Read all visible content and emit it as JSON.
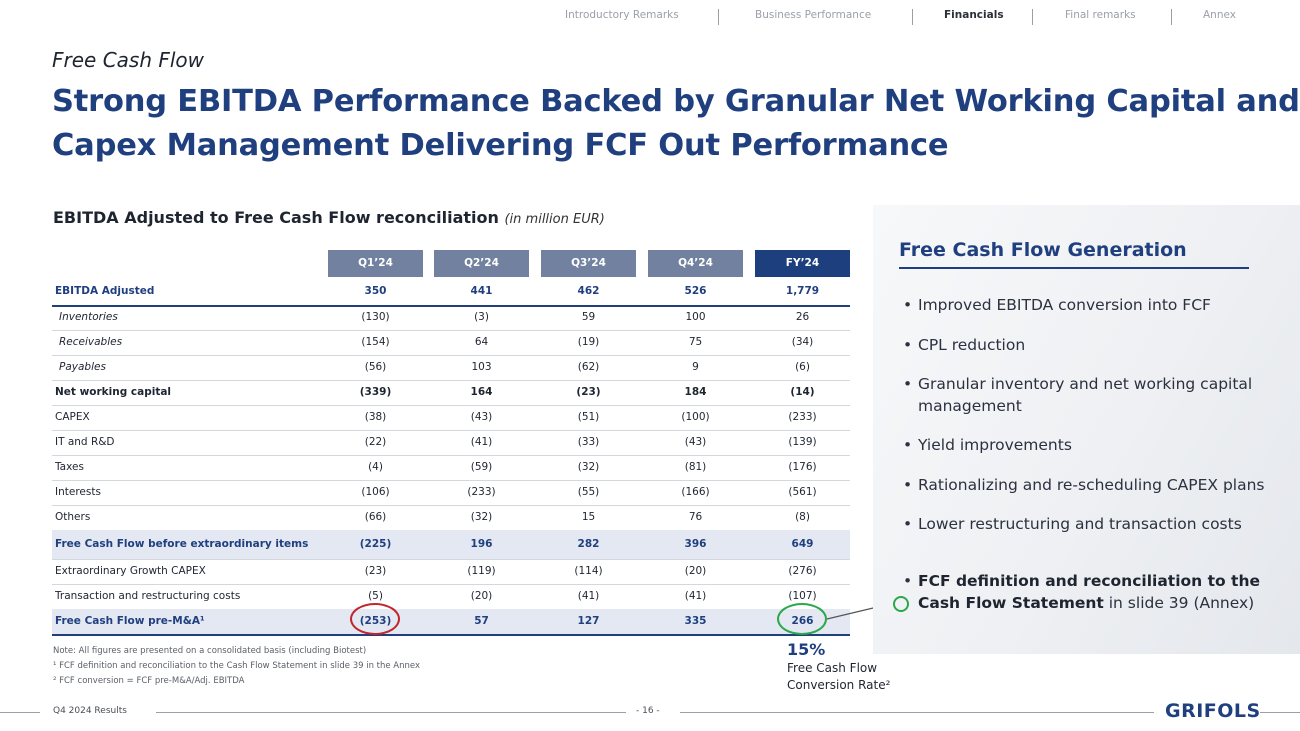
{
  "nav": {
    "items": [
      "Introductory Remarks",
      "Business Performance",
      "Financials",
      "Final remarks",
      "Annex"
    ],
    "active": "Financials"
  },
  "header": {
    "subtitle": "Free Cash Flow",
    "title_line1": "Strong EBITDA Performance Backed by Granular Net Working Capital and",
    "title_line2": "Capex Management Delivering FCF Out Performance"
  },
  "section": {
    "title": "EBITDA Adjusted to Free Cash Flow reconciliation",
    "unit": "(in million EUR)"
  },
  "table": {
    "columns": [
      "Q1’24",
      "Q2’24",
      "Q3’24",
      "Q4’24",
      "FY’24"
    ],
    "rows": [
      {
        "label": "EBITDA Adjusted",
        "values": [
          "350",
          "441",
          "462",
          "526",
          "1,779"
        ],
        "style": "blue"
      },
      {
        "label": "Inventories",
        "values": [
          "(130)",
          "(3)",
          "59",
          "100",
          "26"
        ],
        "style": "italic"
      },
      {
        "label": "Receivables",
        "values": [
          "(154)",
          "64",
          "(19)",
          "75",
          "(34)"
        ],
        "style": "italic"
      },
      {
        "label": "Payables",
        "values": [
          "(56)",
          "103",
          "(62)",
          "9",
          "(6)"
        ],
        "style": "italic"
      },
      {
        "label": "Net working capital",
        "values": [
          "(339)",
          "164",
          "(23)",
          "184",
          "(14)"
        ],
        "style": "bold"
      },
      {
        "label": "CAPEX",
        "values": [
          "(38)",
          "(43)",
          "(51)",
          "(100)",
          "(233)"
        ],
        "style": "normal"
      },
      {
        "label": "IT and R&D",
        "values": [
          "(22)",
          "(41)",
          "(33)",
          "(43)",
          "(139)"
        ],
        "style": "normal"
      },
      {
        "label": "Taxes",
        "values": [
          "(4)",
          "(59)",
          "(32)",
          "(81)",
          "(176)"
        ],
        "style": "normal"
      },
      {
        "label": "Interests",
        "values": [
          "(106)",
          "(233)",
          "(55)",
          "(166)",
          "(561)"
        ],
        "style": "normal"
      },
      {
        "label": "Others",
        "values": [
          "(66)",
          "(32)",
          "15",
          "76",
          "(8)"
        ],
        "style": "normal"
      },
      {
        "label": "Free Cash Flow before extraordinary items",
        "values": [
          "(225)",
          "196",
          "282",
          "396",
          "649"
        ],
        "style": "shade"
      },
      {
        "label": "Extraordinary Growth CAPEX",
        "values": [
          "(23)",
          "(119)",
          "(114)",
          "(20)",
          "(276)"
        ],
        "style": "normal"
      },
      {
        "label": "Transaction and restructuring costs",
        "values": [
          "(5)",
          "(20)",
          "(41)",
          "(41)",
          "(107)"
        ],
        "style": "normal"
      },
      {
        "label": "Free Cash Flow pre-M&A¹",
        "values": [
          "(253)",
          "57",
          "127",
          "335",
          "266"
        ],
        "style": "shade-thick"
      }
    ]
  },
  "notes": [
    "Note: All figures are presented on a consolidated basis (including Biotest)",
    "¹ FCF definition and reconciliation to the Cash Flow Statement in slide 39 in the Annex",
    "² FCF conversion = FCF pre-M&A/Adj. EBITDA"
  ],
  "conversion": {
    "pct": "15%",
    "label_line1": "Free Cash Flow",
    "label_line2": "Conversion Rate²"
  },
  "panel": {
    "title": "Free Cash Flow Generation",
    "bullets": [
      "Improved EBITDA conversion into FCF",
      "CPL reduction",
      "Granular inventory and net working capital management",
      "Yield improvements",
      "Rationalizing and re-scheduling CAPEX plans",
      "Lower restructuring and transaction costs"
    ],
    "last_bullet_bold": "FCF definition and reconciliation to the Cash Flow Statement",
    "last_bullet_rest": " in slide 39 (Annex)"
  },
  "footer": {
    "left": "Q4 2024 Results",
    "page": "- 16 -",
    "logo": "GRIFOLS"
  },
  "colors": {
    "brand_blue": "#1f3f7f",
    "header_gray": "#71819f",
    "highlight_red": "#c0272d",
    "highlight_green": "#2aa84a"
  }
}
